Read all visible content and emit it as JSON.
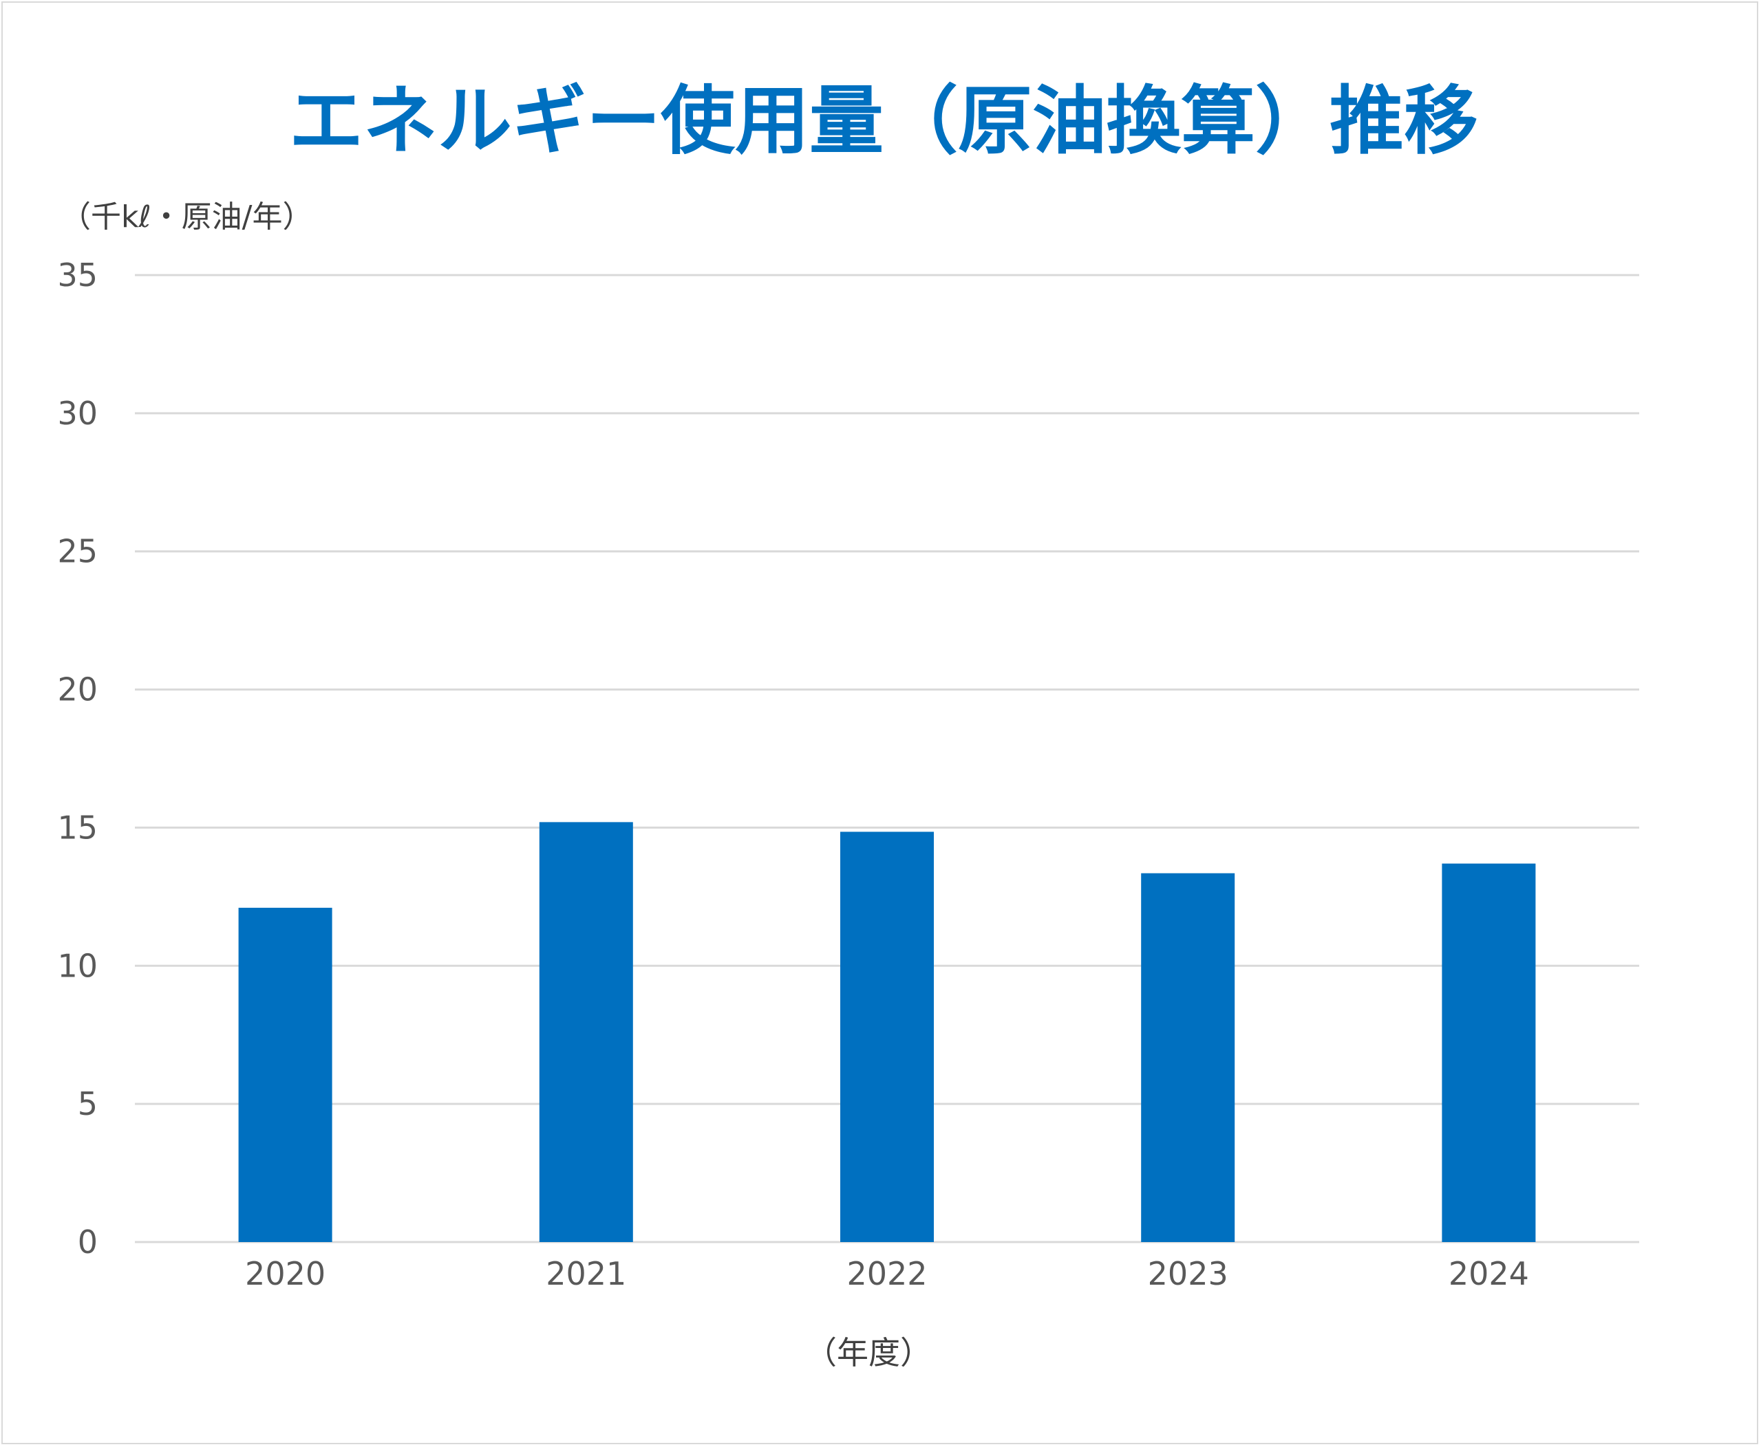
{
  "chart_data": {
    "type": "bar",
    "title": "エネルギー使用量（原油換算）推移",
    "ylabel": "（千kℓ・原油/年）",
    "xlabel": "（年度）",
    "categories": [
      "2020",
      "2021",
      "2022",
      "2023",
      "2024"
    ],
    "values": [
      12.1,
      15.2,
      14.85,
      13.35,
      13.7
    ],
    "ylim": [
      0,
      35
    ],
    "yticks": [
      "0",
      "5",
      "10",
      "15",
      "20",
      "25",
      "30",
      "35"
    ],
    "grid": true,
    "legend": "none",
    "bar_color": "#0070c0",
    "grid_color": "#d9d9d9"
  }
}
